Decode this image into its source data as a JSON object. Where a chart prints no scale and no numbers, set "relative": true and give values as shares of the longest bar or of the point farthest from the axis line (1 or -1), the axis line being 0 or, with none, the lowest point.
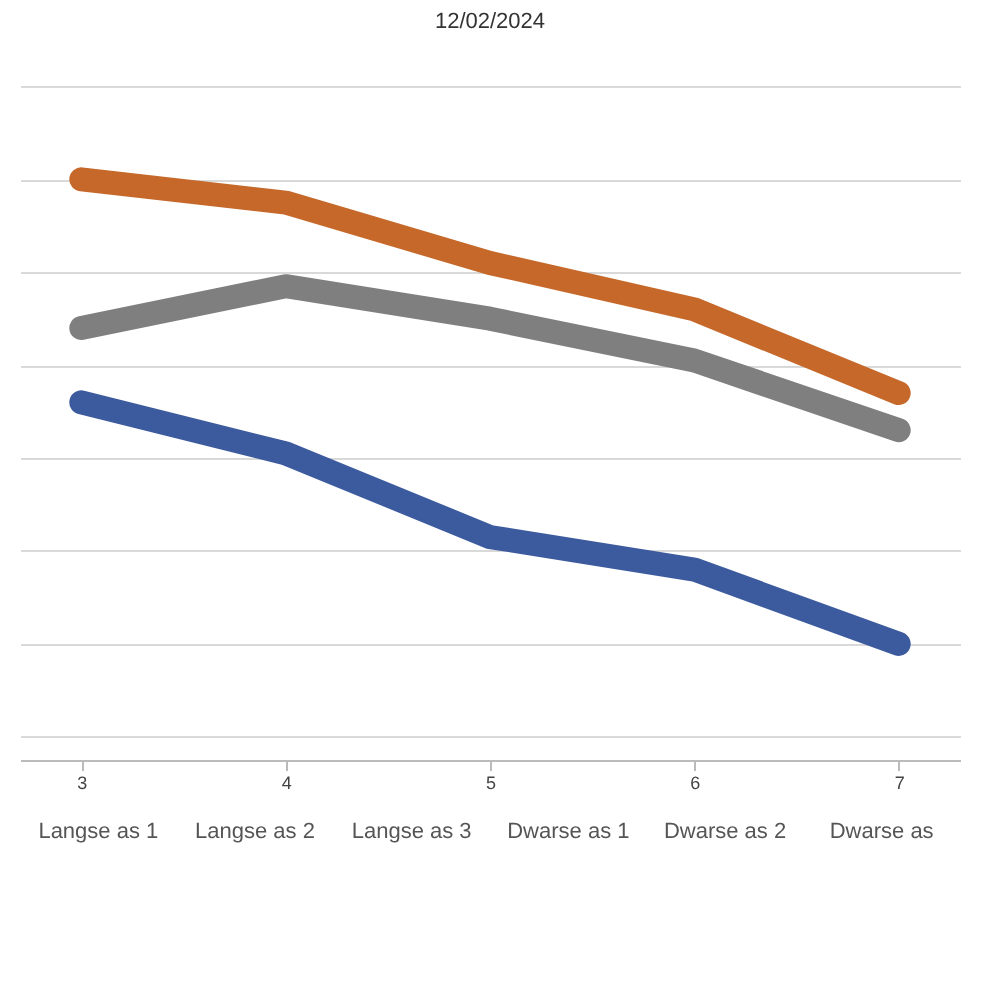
{
  "chart_data": {
    "type": "line",
    "title": "12/02/2024",
    "relative": true,
    "grid": "y",
    "categories": [
      "3",
      "4",
      "5",
      "6",
      "7"
    ],
    "series": [
      {
        "color": "#c5682a",
        "values": [
          1,
          0.95,
          0.82,
          0.72,
          0.54
        ]
      },
      {
        "color": "#7f7f7f",
        "values": [
          0.68,
          0.77,
          0.7,
          0.61,
          0.46
        ]
      },
      {
        "color": "#3c5a9e",
        "values": [
          0.52,
          0.41,
          0.23,
          0.16,
          0
        ]
      }
    ],
    "annotations": [
      "Langse as 1",
      "Langse as 2",
      "Langse as 3",
      "Dwarse as 1",
      "Dwarse as 2",
      "Dwarse as"
    ]
  }
}
